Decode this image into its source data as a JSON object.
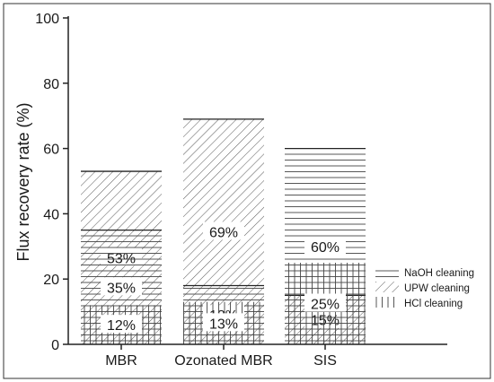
{
  "chart_data": {
    "type": "bar",
    "stacked": true,
    "title": "",
    "xlabel": "",
    "ylabel": "Flux recovery rate (%)",
    "ylim": [
      0,
      100
    ],
    "yticks": [
      0,
      20,
      40,
      60,
      80,
      100
    ],
    "grid": false,
    "legend_position": "bottom-right",
    "categories": [
      "MBR",
      "Ozonated MBR",
      "SIS"
    ],
    "series": [
      {
        "name": "UPW cleaning",
        "values": [
          53,
          69,
          15
        ],
        "labels": [
          "53%",
          "69%",
          "15%"
        ],
        "pattern": "diagonal-hatch"
      },
      {
        "name": "NaOH cleaning",
        "values": [
          35,
          18,
          60
        ],
        "labels": [
          "35%",
          "18%",
          "60%"
        ],
        "pattern": "horizontal-lines"
      },
      {
        "name": "HCl cleaning",
        "values": [
          12,
          13,
          25
        ],
        "labels": [
          "12%",
          "13%",
          "25%"
        ],
        "pattern": "vertical-lines"
      }
    ],
    "legend": [
      {
        "label": "NaOH cleaning",
        "pattern": "horizontal-lines"
      },
      {
        "label": "UPW cleaning",
        "pattern": "diagonal-hatch"
      },
      {
        "label": "HCl cleaning",
        "pattern": "vertical-lines"
      }
    ]
  }
}
